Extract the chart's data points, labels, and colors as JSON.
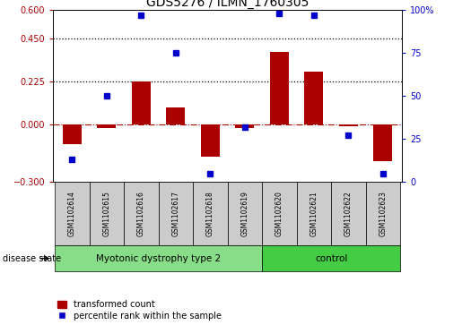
{
  "title": "GDS5276 / ILMN_1760305",
  "samples": [
    "GSM1102614",
    "GSM1102615",
    "GSM1102616",
    "GSM1102617",
    "GSM1102618",
    "GSM1102619",
    "GSM1102620",
    "GSM1102621",
    "GSM1102622",
    "GSM1102623"
  ],
  "red_values": [
    -0.1,
    -0.02,
    0.225,
    0.09,
    -0.17,
    -0.02,
    0.38,
    0.275,
    -0.01,
    -0.19
  ],
  "blue_values": [
    13,
    50,
    97,
    75,
    5,
    32,
    98,
    97,
    27,
    5
  ],
  "ylim_left": [
    -0.3,
    0.6
  ],
  "ylim_right": [
    0,
    100
  ],
  "yticks_left": [
    -0.3,
    0.0,
    0.225,
    0.45,
    0.6
  ],
  "yticks_right": [
    0,
    25,
    50,
    75,
    100
  ],
  "ytick_labels_right": [
    "0",
    "25",
    "50",
    "75",
    "100%"
  ],
  "hlines": [
    0.225,
    0.45
  ],
  "red_color": "#AA0000",
  "blue_color": "#0000CC",
  "bar_width": 0.55,
  "groups": [
    {
      "label": "Myotonic dystrophy type 2",
      "indices": [
        0,
        1,
        2,
        3,
        4,
        5
      ],
      "color": "#88DD88"
    },
    {
      "label": "control",
      "indices": [
        6,
        7,
        8,
        9
      ],
      "color": "#44CC44"
    }
  ],
  "disease_state_label": "disease state",
  "legend_red": "transformed count",
  "legend_blue": "percentile rank within the sample",
  "gray_color": "#CCCCCC",
  "sample_fontsize": 5.5,
  "group_fontsize": 7.5,
  "title_fontsize": 10
}
